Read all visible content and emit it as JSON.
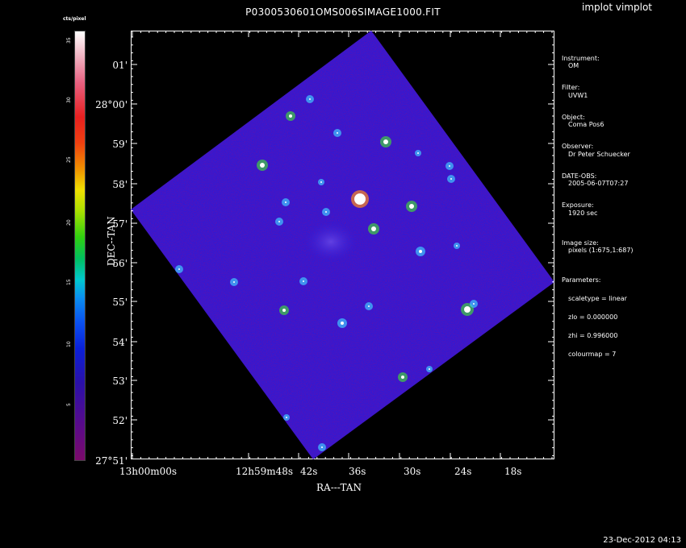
{
  "window": {
    "title": "P0300530601OMS006SIMAGE1000.FIT",
    "program": "implot vimplot"
  },
  "colorbar": {
    "title": "cts/pixel",
    "ticks": [
      "5",
      "10",
      "15",
      "20",
      "25",
      "30",
      "35"
    ]
  },
  "axes": {
    "ylabel": "DEC--TAN",
    "xlabel": "RA---TAN",
    "yticks": [
      "01'",
      "28°00'",
      "59'",
      "58'",
      "57'",
      "56'",
      "55'",
      "54'",
      "53'",
      "52'",
      "27°51'"
    ],
    "xticks": [
      "13h00m00s",
      "12h59m48s",
      "42s",
      "36s",
      "30s",
      "24s",
      "18s"
    ]
  },
  "sidebar": {
    "instrument_label": "Instrument:",
    "instrument": "OM",
    "filter_label": "Filter:",
    "filter": "UVW1",
    "object_label": "Object:",
    "object": "Coma Pos6",
    "observer_label": "Observer:",
    "observer": "Dr Peter Schuecker",
    "date_label": "DATE-OBS:",
    "date": "2005-06-07T07:27",
    "exposure_label": "Exposure:",
    "exposure": "1920 sec",
    "size_label": "Image size:",
    "size": "pixels (1:675,1:687)",
    "params_label": "Parameters:",
    "scaletype": "scaletype = linear",
    "zlo": "zlo = 0.000000",
    "zhi": "zhi = 0.996000",
    "colourmap": "colourmap = 7"
  },
  "footer": {
    "timestamp": "23-Dec-2012 04:13"
  },
  "colors": {
    "image_blue": "#2d1ad6",
    "background": "#000000",
    "text": "#ffffff"
  }
}
